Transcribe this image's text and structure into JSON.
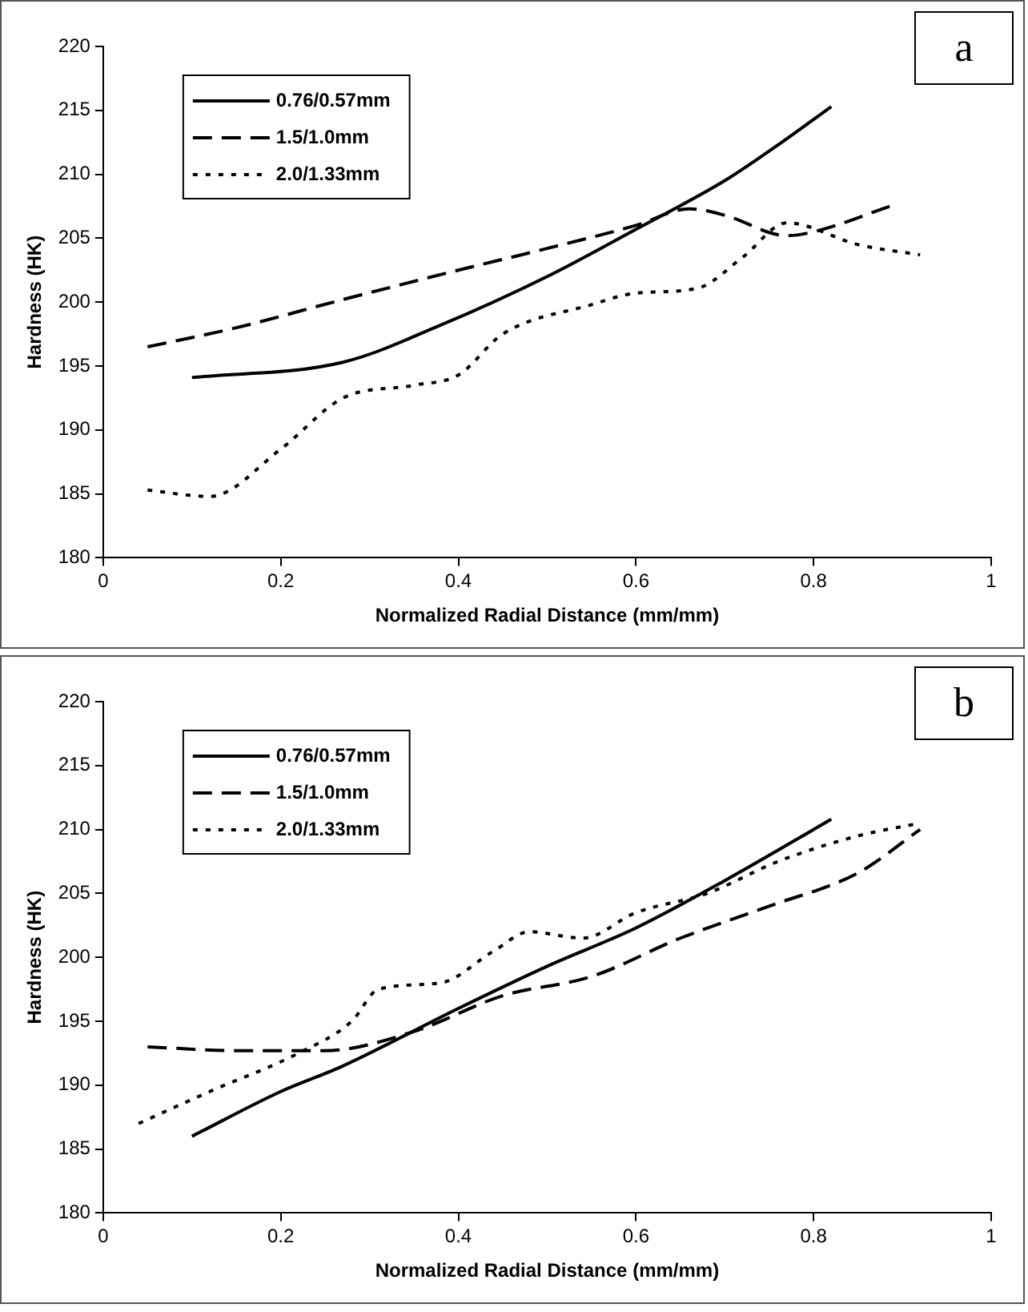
{
  "chart_data": [
    {
      "type": "line",
      "title": "a",
      "xlabel": "Normalized Radial Distance (mm/mm)",
      "ylabel": "Hardness (HK)",
      "xlim": [
        0,
        1
      ],
      "xticks": [
        0,
        0.2,
        0.4,
        0.6,
        0.8,
        1
      ],
      "ylim": [
        180,
        220
      ],
      "yticks": [
        180,
        185,
        190,
        195,
        200,
        205,
        210,
        215,
        220
      ],
      "grid": false,
      "legend": "top left",
      "marker": "none",
      "series": [
        {
          "name": "0.76/0.57mm",
          "color": "#000000",
          "line_style": "solid",
          "x": [
            0.1,
            0.27,
            0.38,
            0.5,
            0.6,
            0.7,
            0.76,
            0.82
          ],
          "values": [
            194.1,
            195.3,
            198.2,
            202,
            205.7,
            209.5,
            212.3,
            215.3
          ]
        },
        {
          "name": "1.5/1.0mm",
          "color": "#000000",
          "line_style": "dashed",
          "x": [
            0.05,
            0.15,
            0.27,
            0.4,
            0.5,
            0.6,
            0.66,
            0.7,
            0.77,
            0.8,
            0.89
          ],
          "values": [
            196.5,
            198,
            200.2,
            202.5,
            204.2,
            206,
            207.3,
            206.8,
            205.2,
            205.5,
            207.6
          ]
        },
        {
          "name": "2.0/1.33mm",
          "color": "#000000",
          "line_style": "dotted",
          "x": [
            0.05,
            0.12,
            0.2,
            0.27,
            0.35,
            0.4,
            0.45,
            0.55,
            0.6,
            0.67,
            0.72,
            0.77,
            0.85,
            0.92
          ],
          "values": [
            185.3,
            184.8,
            188.5,
            192.5,
            193.5,
            194.3,
            197.5,
            199.8,
            200.7,
            201.1,
            203.5,
            206.2,
            204.5,
            203.7
          ]
        }
      ]
    },
    {
      "type": "line",
      "title": "b",
      "xlabel": "Normalized Radial Distance (mm/mm)",
      "ylabel": "Hardness (HK)",
      "xlim": [
        0,
        1
      ],
      "xticks": [
        0,
        0.2,
        0.4,
        0.6,
        0.8,
        1
      ],
      "ylim": [
        180,
        220
      ],
      "yticks": [
        180,
        185,
        190,
        195,
        200,
        205,
        210,
        215,
        220
      ],
      "grid": false,
      "legend": "top left",
      "marker": "none",
      "series": [
        {
          "name": "0.76/0.57mm",
          "color": "#000000",
          "line_style": "solid",
          "x": [
            0.1,
            0.2,
            0.27,
            0.4,
            0.5,
            0.6,
            0.7,
            0.82
          ],
          "values": [
            186,
            189.5,
            191.5,
            196,
            199.3,
            202.3,
            206,
            210.8
          ]
        },
        {
          "name": "1.5/1.0mm",
          "color": "#000000",
          "line_style": "dashed",
          "x": [
            0.05,
            0.15,
            0.25,
            0.35,
            0.45,
            0.55,
            0.65,
            0.75,
            0.85,
            0.92
          ],
          "values": [
            193,
            192.7,
            192.7,
            194.2,
            197,
            198.5,
            201.5,
            204,
            206.6,
            210
          ]
        },
        {
          "name": "2.0/1.33mm",
          "color": "#000000",
          "line_style": "dotted",
          "x": [
            0.04,
            0.12,
            0.22,
            0.28,
            0.31,
            0.38,
            0.44,
            0.48,
            0.54,
            0.6,
            0.68,
            0.76,
            0.85,
            0.92
          ],
          "values": [
            187,
            189.5,
            192.5,
            195,
            197.5,
            198,
            200.5,
            202,
            201.5,
            203.5,
            205,
            207.5,
            209.5,
            210.5
          ]
        }
      ]
    }
  ]
}
